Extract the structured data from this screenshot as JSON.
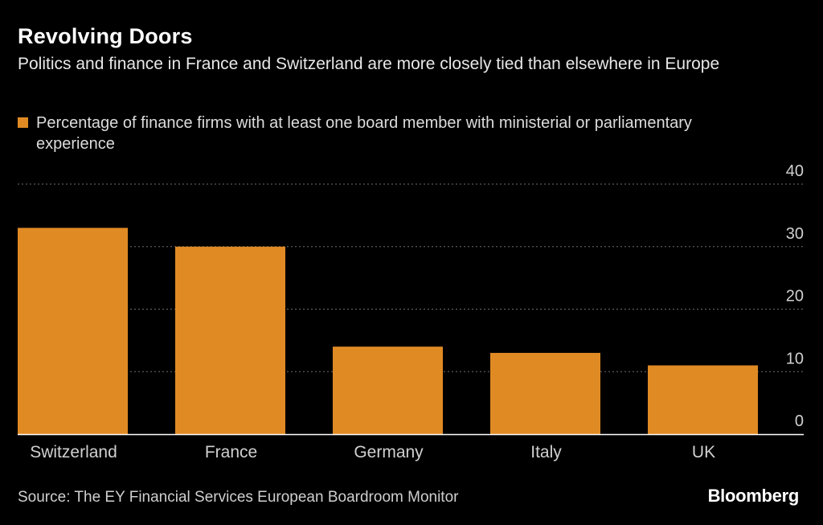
{
  "header": {
    "title": "Revolving Doors",
    "subtitle": "Politics and finance in France and Switzerland are more closely tied than elsewhere in Europe"
  },
  "legend": {
    "label": "Percentage of finance firms with at least one board member with ministerial or parliamentary experience"
  },
  "footer": {
    "source": "Source: The EY Financial Services European Boardroom Monitor",
    "brand": "Bloomberg"
  },
  "colors": {
    "background": "#000000",
    "bar": "#E08A24",
    "grid": "#6e6e6e",
    "axis": "#ffffff",
    "tick_label": "#d0d0d0"
  },
  "chart_data": {
    "type": "bar",
    "categories": [
      "Switzerland",
      "France",
      "Germany",
      "Italy",
      "UK"
    ],
    "series": [
      {
        "name": "Percentage of finance firms with at least one board member with ministerial or parliamentary experience",
        "values": [
          33,
          30,
          14,
          13,
          11
        ]
      }
    ],
    "ylim": [
      0,
      40
    ],
    "yticks": [
      0,
      10,
      20,
      30,
      40
    ],
    "y_axis_side": "right",
    "grid": true,
    "legend_position": "top-left"
  }
}
